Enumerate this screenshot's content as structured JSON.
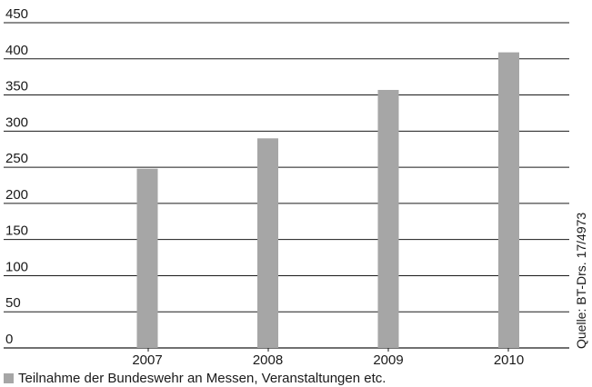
{
  "chart_data": {
    "type": "bar",
    "categories": [
      "2007",
      "2008",
      "2009",
      "2010"
    ],
    "series": [
      {
        "name": "Teilnahme der Bundeswehr an Messen, Veranstaltungen etc.",
        "values": [
          248,
          290,
          357,
          409
        ]
      }
    ],
    "title": "",
    "xlabel": "",
    "ylabel": "",
    "ylim": [
      0,
      450
    ],
    "yticks": [
      0,
      50,
      100,
      150,
      200,
      250,
      300,
      350,
      400,
      450
    ],
    "grid": true,
    "legend_position": "bottom-left",
    "bar_color": "#a6a6a6",
    "grid_color": "#1a1a1a",
    "source": "Quelle: BT-Drs. 17/4973"
  }
}
